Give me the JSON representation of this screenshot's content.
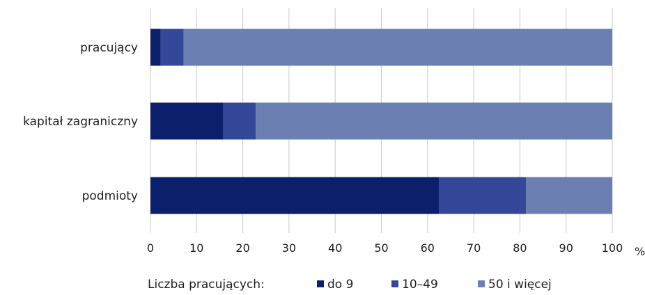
{
  "chart_data": {
    "type": "bar",
    "orientation": "horizontal",
    "stacked": true,
    "categories": [
      "pracujący",
      "kapitał zagraniczny",
      "podmioty"
    ],
    "series": [
      {
        "name": "do 9",
        "values": [
          2.2,
          15.8,
          62.5
        ],
        "color": "#0b1f6b"
      },
      {
        "name": "10–49",
        "values": [
          5.0,
          7.0,
          18.8
        ],
        "color": "#34489a"
      },
      {
        "name": "50 i więcej",
        "values": [
          92.8,
          77.2,
          18.7
        ],
        "color": "#6c7fb3"
      }
    ],
    "xlim": [
      0,
      100
    ],
    "xticks": [
      "0",
      "10",
      "20",
      "30",
      "40",
      "50",
      "60",
      "70",
      "80",
      "90",
      "100"
    ],
    "x_unit": "%",
    "grid": "vertical",
    "legend": {
      "title": "Liczba pracujących:",
      "position": "bottom"
    }
  }
}
